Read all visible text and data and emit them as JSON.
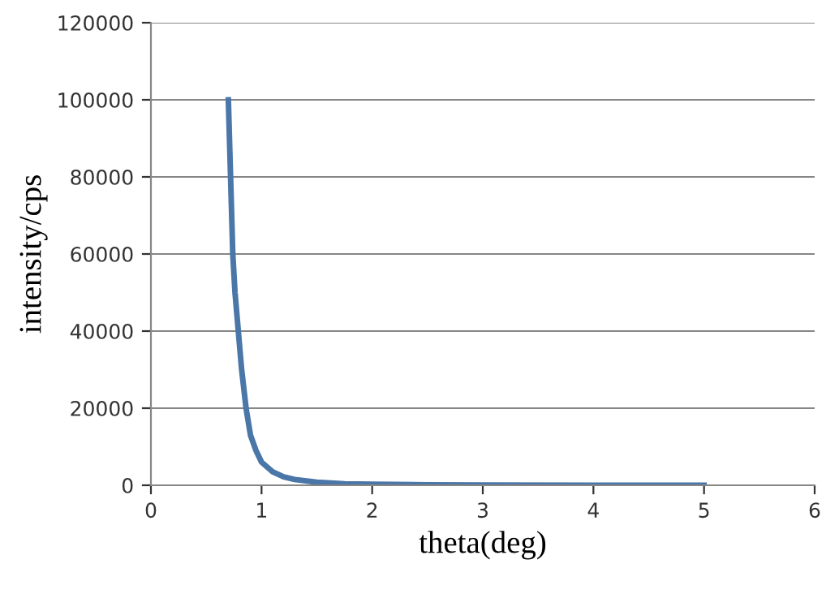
{
  "chart_data": {
    "type": "line",
    "xlabel": "theta(deg)",
    "ylabel": "intensity/cps",
    "series": [
      {
        "color": "#4a76a8",
        "x": [
          0.7,
          0.72,
          0.74,
          0.76,
          0.79,
          0.82,
          0.86,
          0.9,
          0.95,
          1.0,
          1.1,
          1.2,
          1.3,
          1.5,
          1.75,
          2.0,
          2.5,
          3.0,
          4.0,
          5.0
        ],
        "values": [
          100000,
          80000,
          60000,
          50000,
          40000,
          30000,
          20000,
          13000,
          9000,
          6000,
          3500,
          2200,
          1500,
          800,
          400,
          250,
          120,
          70,
          30,
          10
        ]
      }
    ],
    "xlim": [
      0,
      6
    ],
    "xticks": [
      0,
      1,
      2,
      3,
      4,
      5,
      6
    ],
    "ylim": [
      0,
      120000
    ],
    "yticks": [
      0,
      20000,
      40000,
      60000,
      80000,
      100000,
      120000
    ],
    "grid": "y",
    "marker": "none",
    "line_style": "solid"
  }
}
